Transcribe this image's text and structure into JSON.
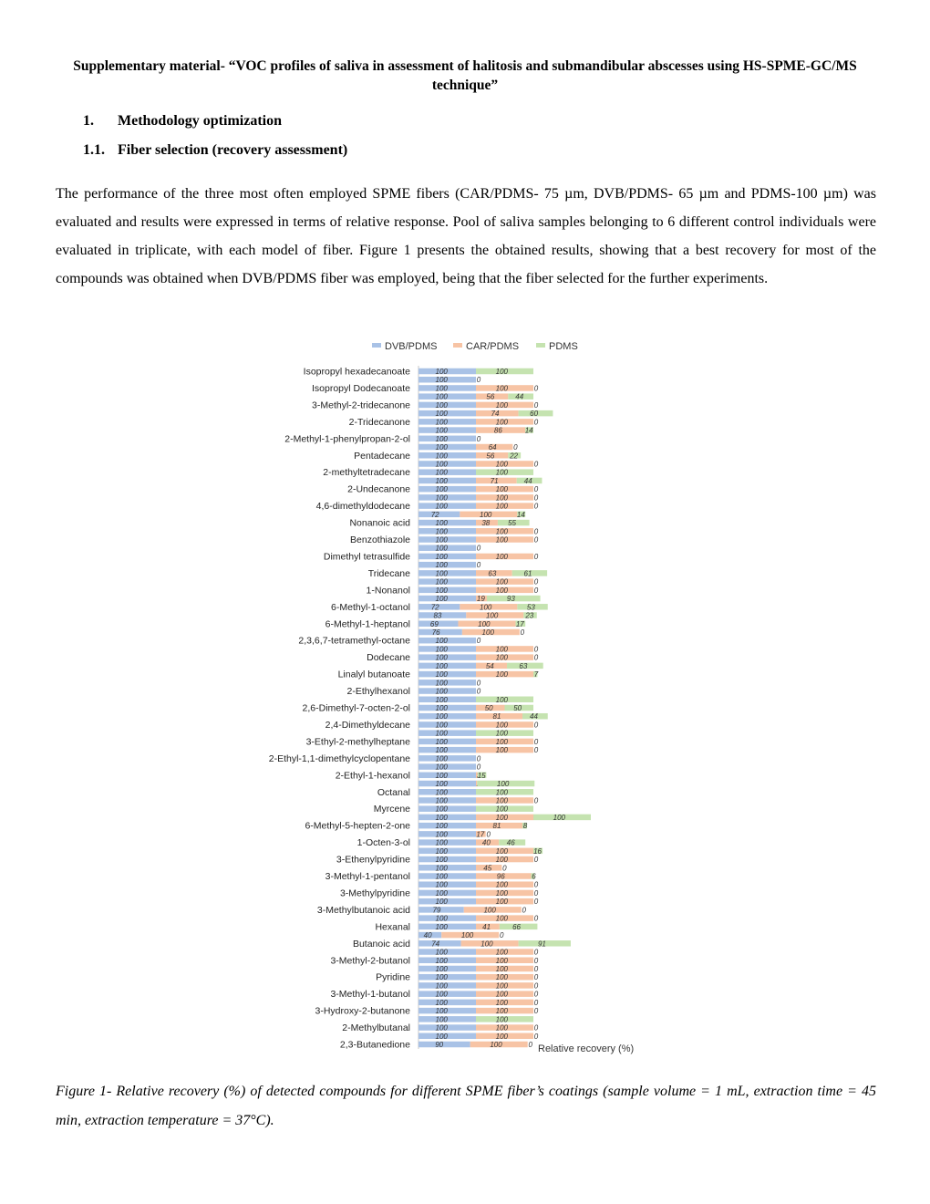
{
  "header": {
    "title": "Supplementary material- “VOC profiles of saliva in assessment of halitosis and submandibular abscesses using HS-SPME-GC/MS technique”"
  },
  "sections": [
    {
      "number": "1.",
      "title": "Methodology optimization"
    },
    {
      "number": "1.1.",
      "title": "Fiber selection (recovery assessment)"
    }
  ],
  "paragraph": "The performance of the three most often employed SPME fibers (CAR/PDMS- 75 µm, DVB/PDMS- 65 µm and PDMS-100 µm) was evaluated and results were expressed in terms of relative response. Pool of saliva samples belonging to 6 different control individuals were evaluated in triplicate, with each model of fiber.  Figure 1 presents the obtained results, showing that a best recovery for most of the compounds was obtained when DVB/PDMS fiber was employed, being that the fiber selected for the further experiments.",
  "chart_data": {
    "type": "bar",
    "orientation": "horizontal",
    "stacked": true,
    "x_label": "Relative recovery (%)",
    "xlim": [
      0,
      300
    ],
    "categories": [
      "Isopropyl hexadecanoate",
      null,
      "Isopropyl Dodecanoate",
      null,
      "3-Methyl-2-tridecanone",
      null,
      "2-Tridecanone",
      null,
      "2-Methyl-1-phenylpropan-2-ol",
      null,
      "Pentadecane",
      null,
      "2-methyltetradecane",
      null,
      "2-Undecanone",
      null,
      "4,6-dimethyldodecane",
      null,
      "Nonanoic acid",
      null,
      "Benzothiazole",
      null,
      "Dimethyl tetrasulfide",
      null,
      "Tridecane",
      null,
      "1-Nonanol",
      null,
      "6-Methyl-1-octanol",
      null,
      "6-Methyl-1-heptanol",
      null,
      "2,3,6,7-tetramethyl-octane",
      null,
      "Dodecane",
      null,
      "Linalyl butanoate",
      null,
      "2-Ethylhexanol",
      null,
      "2,6-Dimethyl-7-octen-2-ol",
      null,
      "2,4-Dimethyldecane",
      null,
      "3-Ethyl-2-methylheptane",
      null,
      "2-Ethyl-1,1-dimethylcyclopentane",
      null,
      "2-Ethyl-1-hexanol",
      null,
      "Octanal",
      null,
      "Myrcene",
      null,
      "6-Methyl-5-hepten-2-one",
      null,
      "1-Octen-3-ol",
      null,
      "3-Ethenylpyridine",
      null,
      "3-Methyl-1-pentanol",
      null,
      "3-Methylpyridine",
      null,
      "3-Methylbutanoic acid",
      null,
      "Hexanal",
      null,
      "Butanoic acid",
      null,
      "3-Methyl-2-butanol",
      null,
      "Pyridine",
      null,
      "3-Methyl-1-butanol",
      null,
      "3-Hydroxy-2-butanone",
      null,
      "2-Methylbutanal",
      null,
      "2,3-Butanedione"
    ],
    "series": [
      {
        "name": "DVB/PDMS",
        "color": "#a9c2e6",
        "values": [
          100,
          100,
          100,
          100,
          100,
          100,
          100,
          100,
          100,
          100,
          100,
          100,
          100,
          100,
          100,
          100,
          100,
          72,
          100,
          100,
          100,
          100,
          100,
          100,
          100,
          100,
          100,
          100,
          72,
          83,
          69,
          76,
          100,
          100,
          100,
          100,
          100,
          100,
          100,
          100,
          100,
          100,
          100,
          100,
          100,
          100,
          100,
          100,
          100,
          100,
          100,
          100,
          100,
          100,
          100,
          100,
          100,
          100,
          100,
          100,
          100,
          100,
          100,
          100,
          79,
          100,
          100,
          40,
          74,
          100,
          100,
          100,
          100,
          100,
          100,
          100,
          100,
          100,
          100,
          100,
          90
        ]
      },
      {
        "name": "CAR/PDMS",
        "color": "#f7c4a5",
        "values": [
          0,
          0,
          100,
          56,
          100,
          74,
          100,
          86,
          0,
          64,
          56,
          100,
          0,
          71,
          100,
          100,
          100,
          100,
          38,
          100,
          100,
          0,
          100,
          0,
          63,
          100,
          100,
          19,
          100,
          100,
          100,
          100,
          0,
          100,
          100,
          54,
          100,
          0,
          0,
          0,
          50,
          81,
          100,
          0,
          100,
          100,
          0,
          0,
          3,
          2,
          0,
          100,
          0,
          100,
          81,
          17,
          40,
          100,
          100,
          45,
          96,
          100,
          100,
          100,
          100,
          100,
          41,
          100,
          100,
          100,
          100,
          100,
          100,
          100,
          100,
          100,
          100,
          0,
          100,
          100,
          100
        ]
      },
      {
        "name": "PDMS",
        "color": "#c5e3b0",
        "values": [
          100,
          null,
          0,
          44,
          0,
          60,
          0,
          14,
          null,
          0,
          22,
          0,
          100,
          44,
          0,
          0,
          0,
          14,
          55,
          0,
          0,
          null,
          0,
          null,
          61,
          0,
          0,
          93,
          53,
          23,
          17,
          0,
          null,
          0,
          0,
          63,
          7,
          null,
          null,
          100,
          50,
          44,
          0,
          100,
          0,
          0,
          null,
          null,
          15,
          100,
          100,
          0,
          100,
          100,
          8,
          0,
          46,
          16,
          0,
          0,
          6,
          0,
          0,
          0,
          0,
          0,
          66,
          0,
          91,
          0,
          0,
          0,
          0,
          0,
          0,
          0,
          0,
          100,
          0,
          0,
          0
        ]
      }
    ]
  },
  "caption": "Figure 1- Relative recovery (%) of detected compounds for different SPME fiber’s coatings (sample volume = 1 mL, extraction time = 45 min, extraction temperature = 37°C)."
}
